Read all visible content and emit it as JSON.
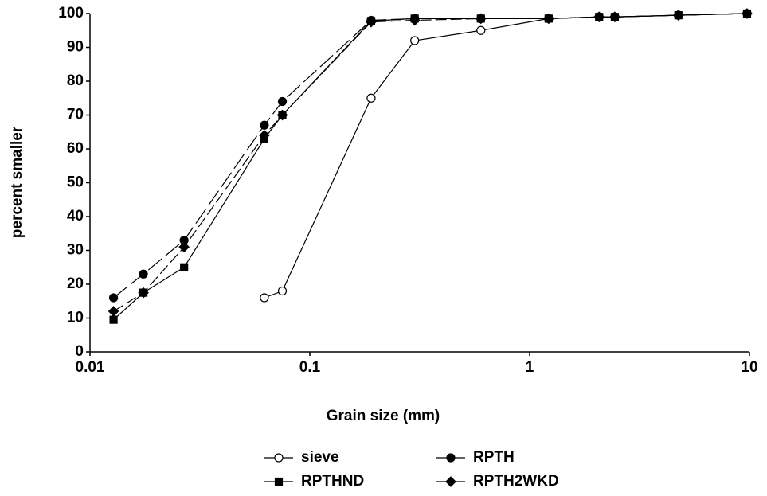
{
  "chart_data": {
    "type": "line",
    "x_label": "Grain size (mm)",
    "y_label": "percent smaller",
    "x_scale": "log",
    "xlim": [
      0.01,
      10
    ],
    "xticks": [
      0.01,
      0.1,
      1,
      10
    ],
    "ylim": [
      0,
      100
    ],
    "yticks": [
      0,
      10,
      20,
      30,
      40,
      50,
      60,
      70,
      80,
      90,
      100
    ],
    "series": [
      {
        "name": "sieve",
        "color": "#000000",
        "marker": "circle-open",
        "dash": "none",
        "x": [
          0.0621,
          0.075,
          0.19,
          0.3,
          0.6,
          1.22,
          2.07,
          2.44,
          4.75,
          9.75
        ],
        "values": [
          16,
          18,
          75,
          92,
          95,
          98.5,
          99,
          99,
          99.5,
          100
        ]
      },
      {
        "name": "RPTH",
        "color": "#000000",
        "marker": "circle",
        "dash": "22 6",
        "x": [
          0.0128,
          0.0175,
          0.0268,
          0.0621,
          0.075,
          0.19,
          0.3,
          0.6,
          1.22,
          2.07,
          2.44,
          4.75,
          9.75
        ],
        "values": [
          16,
          23,
          33,
          67,
          74,
          98,
          98.5,
          98.5,
          98.5,
          99,
          99,
          99.5,
          100
        ]
      },
      {
        "name": "RPTHND",
        "color": "#000000",
        "marker": "square",
        "dash": "none",
        "x": [
          0.0128,
          0.0175,
          0.0268,
          0.0621,
          0.075,
          0.19,
          0.3,
          0.6,
          1.22,
          2.07,
          2.44,
          4.75,
          9.75
        ],
        "values": [
          9.5,
          17.5,
          25,
          63,
          70,
          97.8,
          98.5,
          98.5,
          98.5,
          99,
          99,
          99.5,
          100
        ]
      },
      {
        "name": "RPTH2WKD",
        "color": "#000000",
        "marker": "diamond",
        "dash": "14 5",
        "x": [
          0.0128,
          0.0175,
          0.0268,
          0.0621,
          0.075,
          0.19,
          0.3,
          0.6,
          1.22,
          2.07,
          2.44,
          4.75,
          9.75
        ],
        "values": [
          12,
          17.5,
          31,
          64,
          70,
          97.5,
          98,
          98.5,
          98.5,
          99,
          99,
          99.5,
          100
        ]
      }
    ]
  }
}
